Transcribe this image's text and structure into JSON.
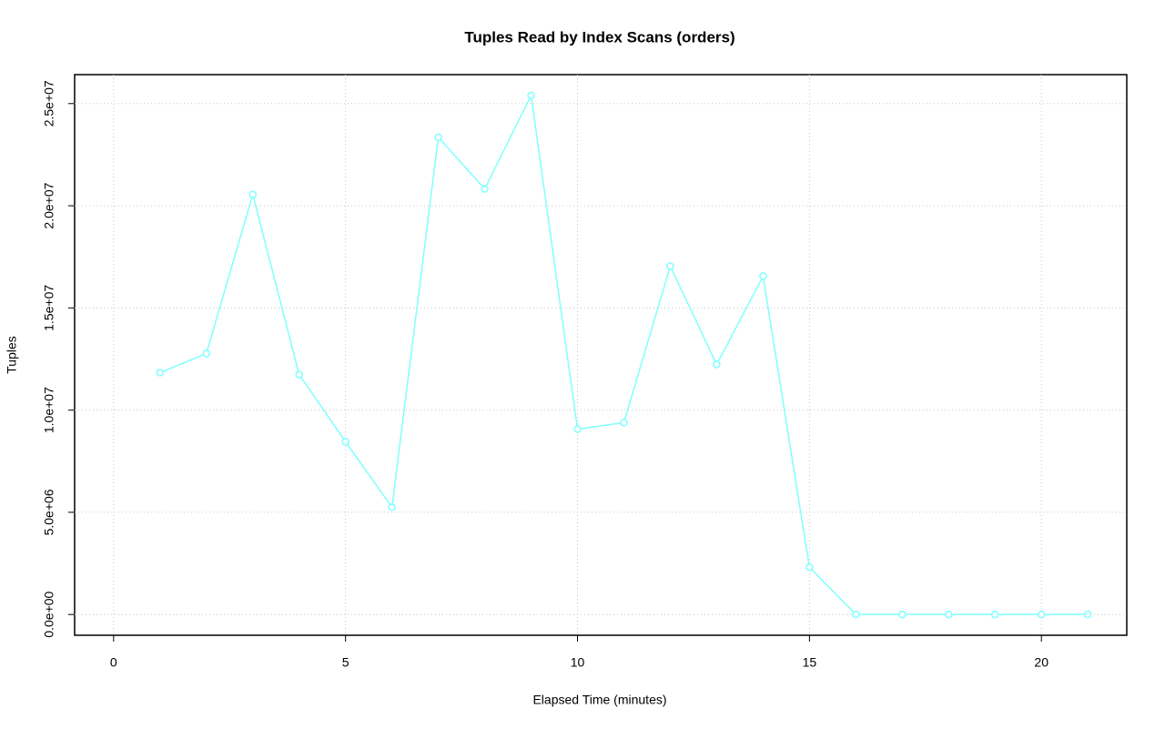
{
  "chart_data": {
    "type": "line",
    "title": "Tuples Read by Index Scans (orders)",
    "xlabel": "Elapsed Time (minutes)",
    "ylabel": "Tuples",
    "x": [
      1,
      2,
      3,
      4,
      5,
      6,
      7,
      8,
      9,
      10,
      11,
      12,
      13,
      14,
      15,
      16,
      17,
      18,
      19,
      20,
      21
    ],
    "series": [
      {
        "name": "orders",
        "color": "#80ffff",
        "values": [
          11830000,
          12770000,
          20550000,
          11740000,
          8450000,
          5250000,
          23350000,
          20820000,
          25400000,
          9070000,
          9390000,
          17040000,
          12230000,
          16550000,
          2310000,
          0,
          0,
          0,
          0,
          0,
          0
        ]
      }
    ],
    "xlim": [
      -0.84,
      21.84
    ],
    "ylim": [
      -1016000,
      26416000
    ],
    "xticks": [
      0,
      5,
      10,
      15,
      20
    ],
    "yticks": [
      {
        "value": 0,
        "label": "0.0e+00"
      },
      {
        "value": 5000000,
        "label": "5.0e+06"
      },
      {
        "value": 10000000,
        "label": "1.0e+07"
      },
      {
        "value": 15000000,
        "label": "1.5e+07"
      },
      {
        "value": 20000000,
        "label": "2.0e+07"
      },
      {
        "value": 25000000,
        "label": "2.5e+07"
      }
    ],
    "grid": true
  }
}
